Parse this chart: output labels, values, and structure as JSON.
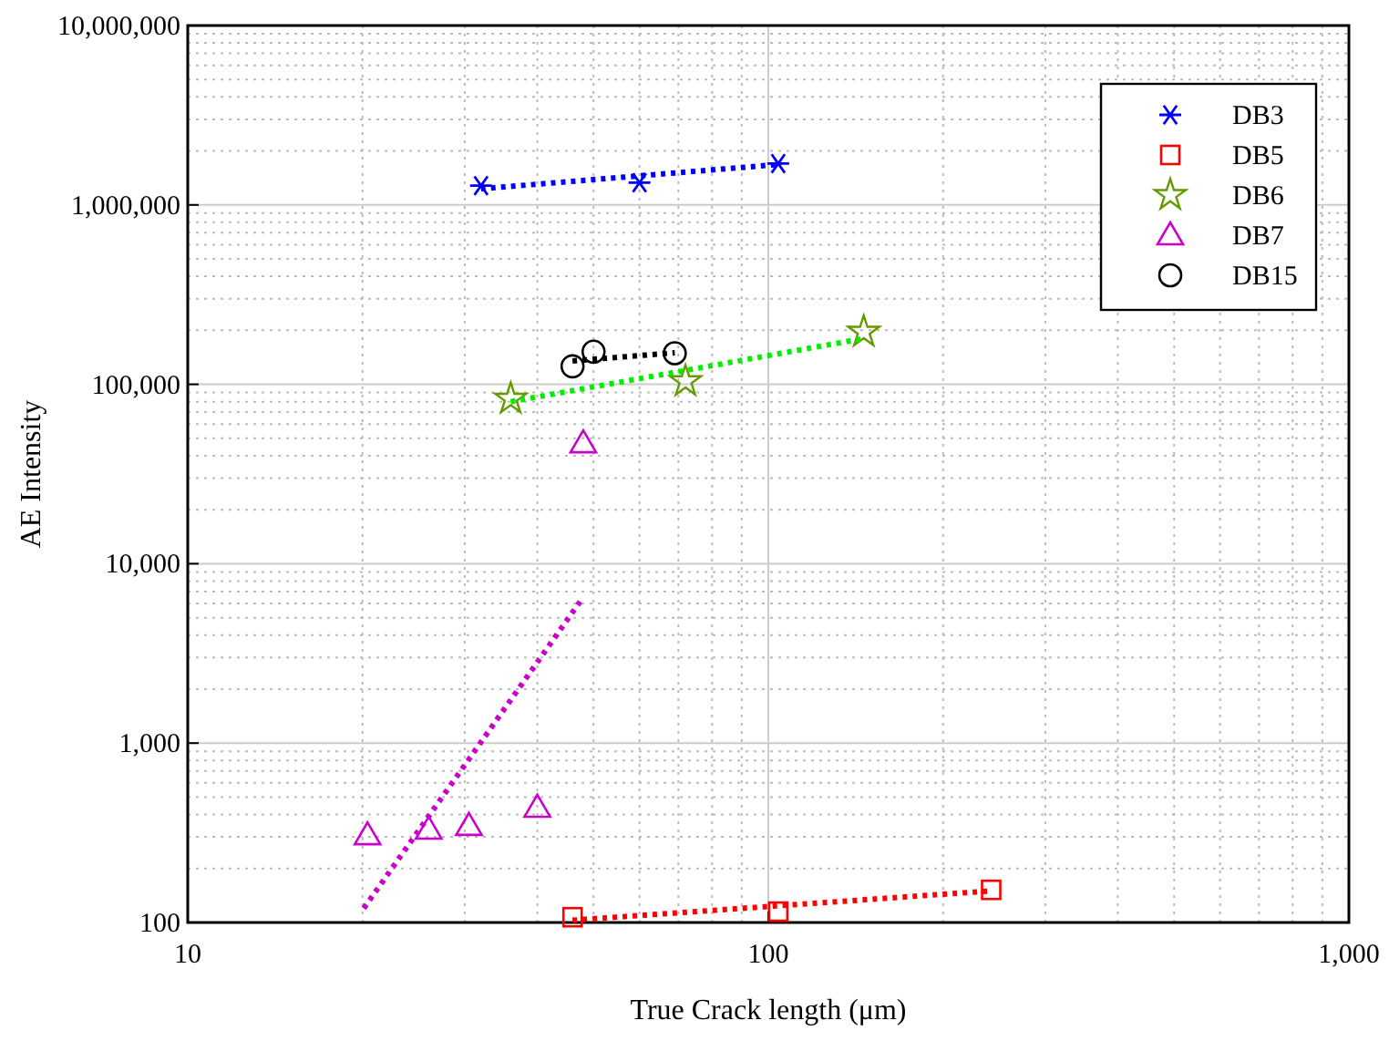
{
  "chart_data": {
    "type": "scatter",
    "xlabel": "True Crack length (μm)",
    "ylabel": "AE Intensity",
    "log": "xy",
    "grid": true,
    "legend": "top right",
    "xlim": [
      10,
      1000
    ],
    "xticks": [
      10,
      100,
      {
        "value": 1000,
        "label": "1,000"
      }
    ],
    "ylim": [
      100,
      10000000
    ],
    "yticks": [
      100,
      {
        "value": 1000,
        "label": "1,000"
      },
      {
        "value": 10000,
        "label": "10,000"
      },
      {
        "value": 100000,
        "label": "100,000"
      },
      {
        "value": 1000000,
        "label": "1,000,000"
      },
      {
        "value": 10000000,
        "label": "10,000,000"
      }
    ],
    "series": [
      {
        "name": "DB3",
        "marker": "cross",
        "color": "#0000ff",
        "x": [
          32,
          60,
          104
        ],
        "values": [
          1280000,
          1330000,
          1700000
        ]
      },
      {
        "name": "DB5",
        "marker": "square",
        "color": "#ff0000",
        "x": [
          46,
          104,
          242
        ],
        "values": [
          107,
          115,
          152
        ]
      },
      {
        "name": "DB6",
        "marker": "star",
        "color": "#669900",
        "x": [
          36,
          72,
          146
        ],
        "values": [
          83000,
          104000,
          196000
        ]
      },
      {
        "name": "DB7",
        "marker": "triangle",
        "color": "#cc00cc",
        "x": [
          20.4,
          26,
          30.5,
          40,
          48
        ],
        "values": [
          307,
          330,
          346,
          437,
          47000
        ]
      },
      {
        "name": "DB15",
        "marker": "circle",
        "color": "#000000",
        "x": [
          46,
          50,
          69
        ],
        "values": [
          126000,
          152000,
          149000
        ]
      },
      {
        "type": "line",
        "line_style": "dotted",
        "color": "#0000ff",
        "x": [
          32,
          104
        ],
        "values": [
          1230000,
          1680000
        ]
      },
      {
        "type": "line",
        "line_style": "dotted",
        "color": "#ff0000",
        "x": [
          46,
          242
        ],
        "values": [
          103,
          150
        ]
      },
      {
        "type": "line",
        "line_style": "dotted",
        "color": "#00ee00",
        "x": [
          36,
          146
        ],
        "values": [
          80000,
          180000
        ]
      },
      {
        "type": "line",
        "line_style": "dotted",
        "color": "#cc00cc",
        "x": [
          20.1,
          47.4
        ],
        "values": [
          120,
          6150
        ]
      },
      {
        "type": "line",
        "line_style": "dotted",
        "color": "#000000",
        "x": [
          46,
          69
        ],
        "values": [
          135000,
          150000
        ]
      }
    ]
  }
}
